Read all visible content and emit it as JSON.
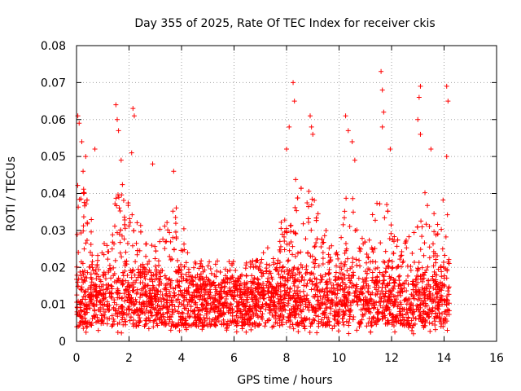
{
  "chart_data": {
    "type": "scatter",
    "title": "Day 355 of 2025, Rate Of TEC Index for receiver ckis",
    "xlabel": "GPS time / hours",
    "ylabel": "ROTI / TECUs",
    "xlim": [
      0,
      16
    ],
    "ylim": [
      0,
      0.08
    ],
    "x_ticks": [
      0,
      2,
      4,
      6,
      8,
      10,
      12,
      14,
      16
    ],
    "x_tick_labels": [
      "0",
      "2",
      "4",
      "6",
      "8",
      "10",
      "12",
      "14",
      "16"
    ],
    "y_ticks": [
      0,
      0.01,
      0.02,
      0.03,
      0.04,
      0.05,
      0.06,
      0.07,
      0.08
    ],
    "y_tick_labels": [
      "0",
      "0.01",
      "0.02",
      "0.03",
      "0.04",
      "0.05",
      "0.06",
      "0.07",
      "0.08"
    ],
    "grid": true,
    "marker": "+",
    "color": "#ff0000",
    "series": [
      {
        "name": "ROTI",
        "approx_data_range_hours": [
          0,
          14.2
        ],
        "baseline_band": [
          0.004,
          0.022
        ],
        "notable_points": [
          {
            "x": 0.05,
            "y": 0.061
          },
          {
            "x": 0.1,
            "y": 0.059
          },
          {
            "x": 0.2,
            "y": 0.054
          },
          {
            "x": 0.25,
            "y": 0.046
          },
          {
            "x": 0.35,
            "y": 0.05
          },
          {
            "x": 0.7,
            "y": 0.052
          },
          {
            "x": 1.5,
            "y": 0.064
          },
          {
            "x": 1.55,
            "y": 0.06
          },
          {
            "x": 1.6,
            "y": 0.057
          },
          {
            "x": 1.7,
            "y": 0.049
          },
          {
            "x": 2.15,
            "y": 0.063
          },
          {
            "x": 2.2,
            "y": 0.061
          },
          {
            "x": 2.1,
            "y": 0.051
          },
          {
            "x": 2.9,
            "y": 0.048
          },
          {
            "x": 3.7,
            "y": 0.046
          },
          {
            "x": 8.1,
            "y": 0.058
          },
          {
            "x": 8.25,
            "y": 0.07
          },
          {
            "x": 8.3,
            "y": 0.065
          },
          {
            "x": 8.0,
            "y": 0.052
          },
          {
            "x": 8.9,
            "y": 0.061
          },
          {
            "x": 8.95,
            "y": 0.058
          },
          {
            "x": 9.0,
            "y": 0.056
          },
          {
            "x": 10.25,
            "y": 0.061
          },
          {
            "x": 10.35,
            "y": 0.057
          },
          {
            "x": 10.5,
            "y": 0.054
          },
          {
            "x": 10.6,
            "y": 0.049
          },
          {
            "x": 11.6,
            "y": 0.073
          },
          {
            "x": 11.65,
            "y": 0.068
          },
          {
            "x": 11.7,
            "y": 0.062
          },
          {
            "x": 11.65,
            "y": 0.058
          },
          {
            "x": 11.95,
            "y": 0.052
          },
          {
            "x": 13.1,
            "y": 0.069
          },
          {
            "x": 13.05,
            "y": 0.066
          },
          {
            "x": 13.0,
            "y": 0.06
          },
          {
            "x": 13.1,
            "y": 0.056
          },
          {
            "x": 13.5,
            "y": 0.052
          },
          {
            "x": 14.1,
            "y": 0.069
          },
          {
            "x": 14.15,
            "y": 0.065
          },
          {
            "x": 14.1,
            "y": 0.05
          }
        ]
      }
    ]
  }
}
